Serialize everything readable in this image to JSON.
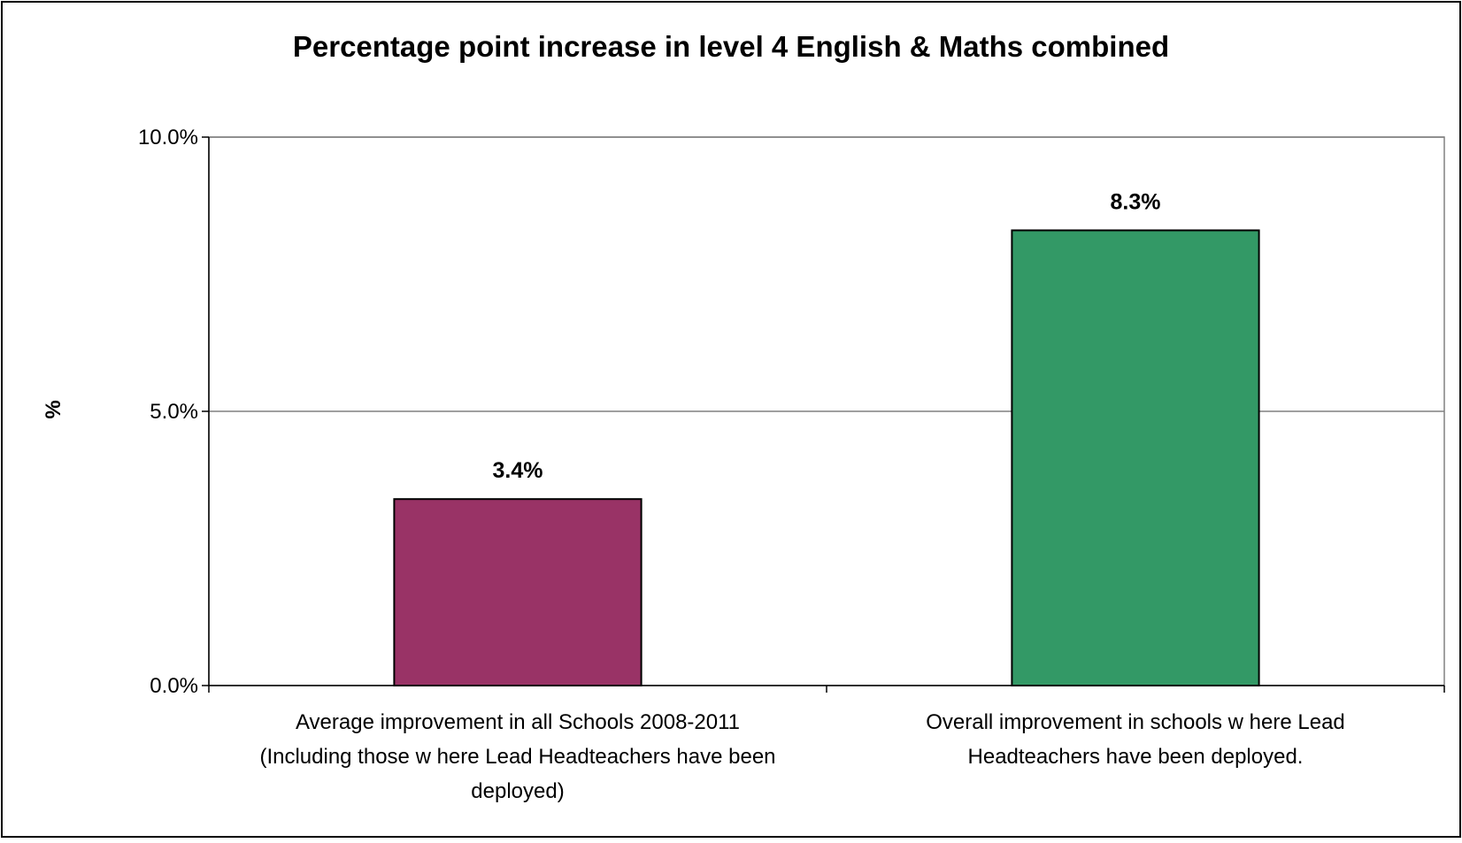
{
  "chart_data": {
    "type": "bar",
    "title": "Percentage point increase in level 4 English & Maths combined",
    "xlabel": "",
    "ylabel": "%",
    "ylim": [
      0,
      10
    ],
    "yticks": [
      0,
      5,
      10
    ],
    "ytick_labels": [
      "0.0%",
      "5.0%",
      "10.0%"
    ],
    "grid": true,
    "legend": "none",
    "categories": [
      [
        "Average improvement in all Schools 2008-2011",
        "(Including those w here Lead Headteachers have been",
        "deployed)"
      ],
      [
        "Overall improvement in schools w here Lead",
        "Headteachers have been deployed."
      ]
    ],
    "values": [
      3.4,
      8.3
    ],
    "data_labels": [
      "3.4%",
      "8.3%"
    ],
    "colors": [
      "#993366",
      "#339966"
    ]
  }
}
